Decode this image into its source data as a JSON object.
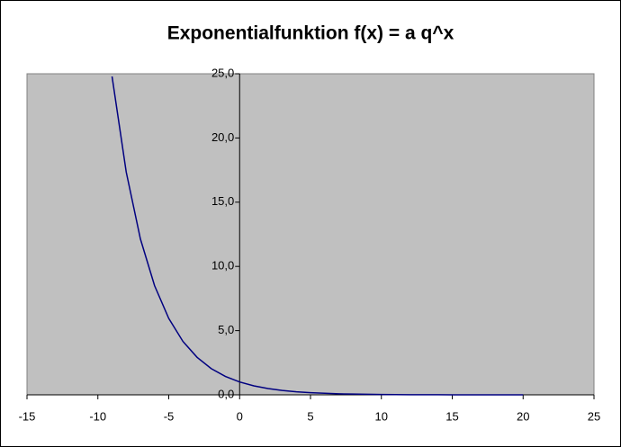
{
  "chart_data": {
    "type": "line",
    "title": "Exponentialfunktion f(x) = a q^x",
    "x": [
      -9,
      -8,
      -7,
      -6,
      -5,
      -4,
      -3,
      -2,
      -1,
      0,
      1,
      2,
      3,
      4,
      5,
      6,
      7,
      8,
      9,
      10,
      11,
      12,
      13,
      14,
      15,
      16,
      17,
      18,
      19,
      20
    ],
    "series": [
      {
        "color": "#000080",
        "values": [
          24.79,
          17.35,
          12.14,
          8.5,
          5.95,
          4.16,
          2.92,
          2.04,
          1.43,
          1,
          0.7,
          0.49,
          0.34,
          0.24,
          0.17,
          0.12,
          0.08,
          0.06,
          0.04,
          0.03,
          0.02,
          0.01,
          0.01,
          0.01,
          0,
          0,
          0,
          0,
          0,
          0
        ]
      }
    ],
    "xlim": [
      -15,
      25
    ],
    "xticks": [
      -15,
      -10,
      -5,
      0,
      5,
      10,
      15,
      20,
      25
    ],
    "ylim": [
      0,
      25
    ],
    "yticks": [
      {
        "value": 0,
        "label": "0,0"
      },
      {
        "value": 5,
        "label": "5,0"
      },
      {
        "value": 10,
        "label": "10,0"
      },
      {
        "value": 15,
        "label": "15,0"
      },
      {
        "value": 20,
        "label": "20,0"
      },
      {
        "value": 25,
        "label": "25,0"
      }
    ],
    "plot_background": "#c0c0c0"
  }
}
